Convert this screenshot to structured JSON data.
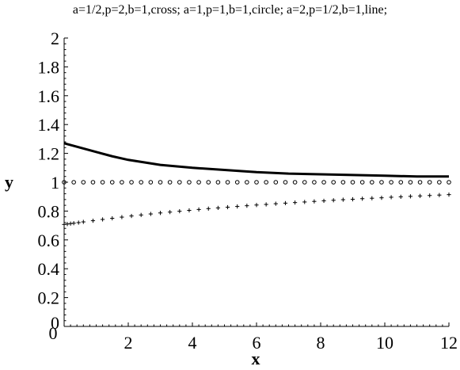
{
  "chart_data": {
    "type": "line",
    "title": "a=1/2,p=2,b=1,cross;  a=1,p=1,b=1,circle; a=2,p=1/2,b=1,line;",
    "xlabel": "x",
    "ylabel": "y",
    "xlim": [
      0,
      12
    ],
    "ylim": [
      0,
      2
    ],
    "x_ticks": [
      2,
      4,
      6,
      8,
      10,
      12
    ],
    "y_ticks": [
      0,
      0.2,
      0.4,
      0.6,
      0.8,
      1,
      1.2,
      1.4,
      1.6,
      1.8,
      2
    ],
    "x_tick_labels": [
      "2",
      "4",
      "6",
      "8",
      "10",
      "12"
    ],
    "y_tick_labels": [
      "0",
      "0.2",
      "0.4",
      "0.6",
      "0.8",
      "1",
      "1.2",
      "1.4",
      "1.6",
      "1.8",
      "2"
    ],
    "x_origin_label": "0",
    "grid": false,
    "series": [
      {
        "style": "line",
        "color": "#000000",
        "x": [
          0,
          0.5,
          1,
          1.5,
          2,
          3,
          4,
          5,
          6,
          7,
          8,
          9,
          10,
          11,
          12
        ],
        "values": [
          1.27,
          1.24,
          1.21,
          1.18,
          1.155,
          1.12,
          1.1,
          1.085,
          1.07,
          1.06,
          1.055,
          1.05,
          1.045,
          1.04,
          1.04
        ]
      },
      {
        "style": "circle",
        "color": "#000000",
        "x": [
          0,
          0.3,
          0.6,
          0.9,
          1.2,
          1.5,
          1.8,
          2.1,
          2.4,
          2.7,
          3.0,
          3.3,
          3.6,
          3.9,
          4.2,
          4.5,
          4.8,
          5.1,
          5.4,
          5.7,
          6.0,
          6.3,
          6.6,
          6.9,
          7.2,
          7.5,
          7.8,
          8.1,
          8.4,
          8.7,
          9.0,
          9.3,
          9.6,
          9.9,
          10.2,
          10.5,
          10.8,
          11.1,
          11.4,
          11.7,
          12.0
        ],
        "values": [
          1,
          1,
          1,
          1,
          1,
          1,
          1,
          1,
          1,
          1,
          1,
          1,
          1,
          1,
          1,
          1,
          1,
          1,
          1,
          1,
          1,
          1,
          1,
          1,
          1,
          1,
          1,
          1,
          1,
          1,
          1,
          1,
          1,
          1,
          1,
          1,
          1,
          1,
          1,
          1,
          1
        ]
      },
      {
        "style": "cross",
        "color": "#000000",
        "x": [
          0,
          0.1,
          0.2,
          0.3,
          0.45,
          0.6,
          0.9,
          1.2,
          1.5,
          1.8,
          2.1,
          2.4,
          2.7,
          3.0,
          3.3,
          3.6,
          3.9,
          4.2,
          4.5,
          4.8,
          5.1,
          5.4,
          5.7,
          6.0,
          6.3,
          6.6,
          6.9,
          7.2,
          7.5,
          7.8,
          8.1,
          8.4,
          8.7,
          9.0,
          9.3,
          9.6,
          9.9,
          10.2,
          10.5,
          10.8,
          11.1,
          11.4,
          11.7,
          12.0
        ],
        "values": [
          0.707,
          0.71,
          0.713,
          0.716,
          0.72,
          0.725,
          0.733,
          0.742,
          0.75,
          0.758,
          0.766,
          0.773,
          0.78,
          0.787,
          0.793,
          0.799,
          0.805,
          0.811,
          0.817,
          0.822,
          0.827,
          0.832,
          0.837,
          0.842,
          0.846,
          0.851,
          0.855,
          0.859,
          0.863,
          0.867,
          0.871,
          0.875,
          0.879,
          0.882,
          0.886,
          0.889,
          0.892,
          0.896,
          0.899,
          0.902,
          0.905,
          0.908,
          0.911,
          0.914
        ]
      }
    ]
  }
}
